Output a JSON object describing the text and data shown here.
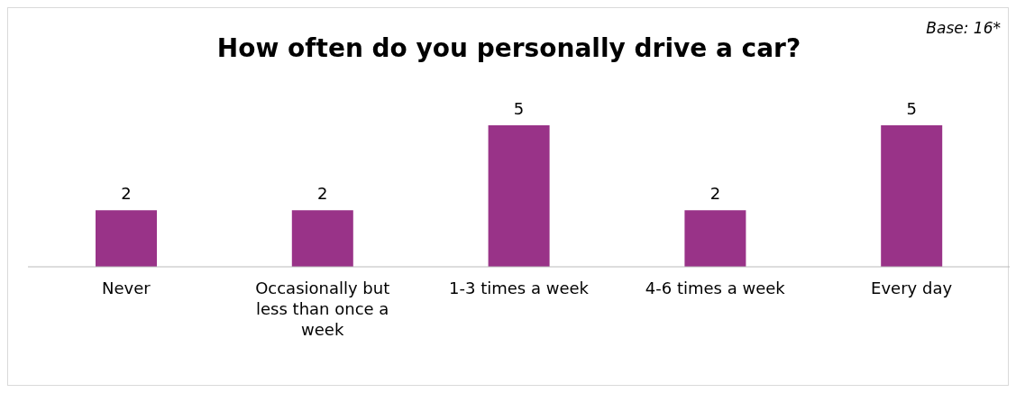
{
  "chart_data": {
    "type": "bar",
    "title": "How often do you personally drive a car?",
    "annotations": [
      "Base: 16*"
    ],
    "categories": [
      "Never",
      "Occasionally but less than once a week",
      "1-3 times a week",
      "4-6 times a week",
      "Every day"
    ],
    "values": [
      2,
      2,
      5,
      2,
      5
    ],
    "color": "#993388",
    "data_labels": true
  }
}
